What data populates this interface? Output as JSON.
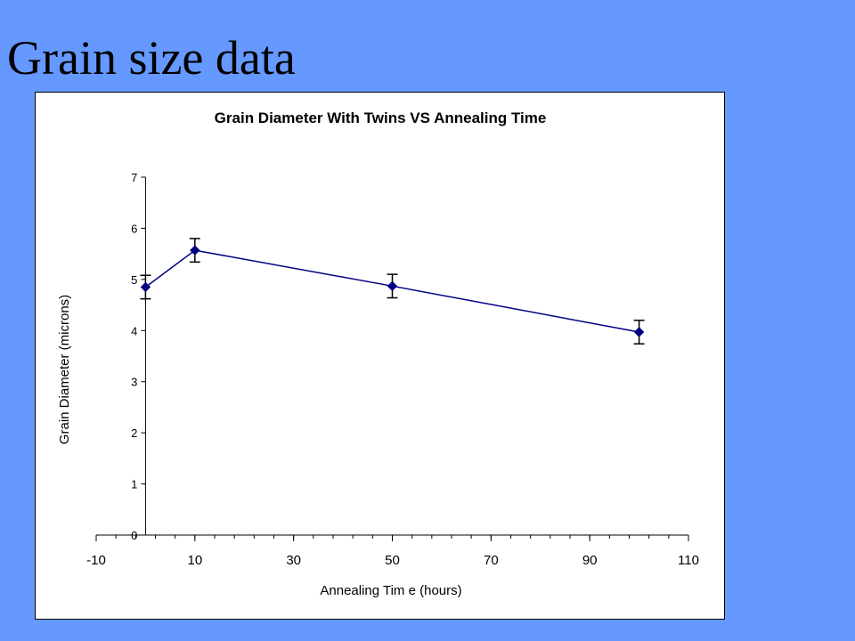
{
  "slide": {
    "title": "Grain size data"
  },
  "colors": {
    "background": "#6699ff",
    "series": "#000080"
  },
  "chart_data": {
    "type": "line",
    "title": "Grain Diameter With Twins VS Annealing Time",
    "xlabel": "Annealing Tim e (hours)",
    "ylabel": "Grain Diameter (microns)",
    "xlim": [
      -10,
      110
    ],
    "ylim": [
      0,
      7
    ],
    "x_ticks": [
      -10,
      10,
      30,
      50,
      70,
      90,
      110
    ],
    "x_tick_labels": [
      "-10",
      "10",
      "30",
      "50",
      "70",
      "90",
      "110"
    ],
    "y_ticks": [
      0,
      1,
      2,
      3,
      4,
      5,
      6,
      7
    ],
    "y_tick_labels": [
      "0",
      "1",
      "2",
      "3",
      "4",
      "5",
      "6",
      "7"
    ],
    "x_minor_step": 4,
    "grid": false,
    "legend": "none",
    "marker": "diamond",
    "series": [
      {
        "x": [
          0,
          10,
          50,
          100
        ],
        "y": [
          4.85,
          5.57,
          4.87,
          3.97
        ],
        "error": [
          0.23,
          0.23,
          0.23,
          0.23
        ]
      }
    ]
  }
}
